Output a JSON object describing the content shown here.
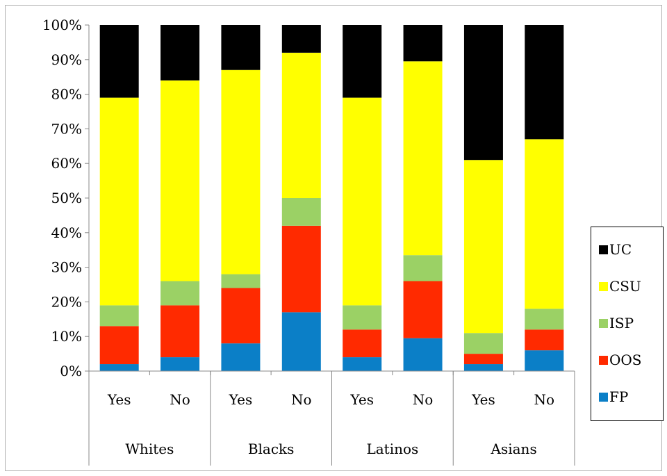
{
  "chart_data": {
    "type": "bar",
    "stacked": true,
    "title": "",
    "xlabel": "",
    "ylabel": "",
    "ylim": [
      0,
      100
    ],
    "yticks": [
      "0%",
      "10%",
      "20%",
      "30%",
      "40%",
      "50%",
      "60%",
      "70%",
      "80%",
      "90%",
      "100%"
    ],
    "groups": [
      "Whites",
      "Blacks",
      "Latinos",
      "Asians"
    ],
    "categories": [
      "Yes",
      "No",
      "Yes",
      "No",
      "Yes",
      "No",
      "Yes",
      "No"
    ],
    "series": [
      {
        "name": "FP",
        "color": "#0b7fc7",
        "values": [
          2,
          4,
          8,
          17,
          4,
          9.5,
          2,
          6
        ]
      },
      {
        "name": "OOS",
        "color": "#ff2a00",
        "values": [
          11,
          15,
          16,
          25,
          8,
          16.5,
          3,
          6
        ]
      },
      {
        "name": "ISP",
        "color": "#9bd165",
        "values": [
          6,
          7,
          4,
          8,
          7,
          7.5,
          6,
          6
        ]
      },
      {
        "name": "CSU",
        "color": "#ffff00",
        "values": [
          60,
          58,
          59,
          42,
          60,
          56,
          50,
          49
        ]
      },
      {
        "name": "UC",
        "color": "#000000",
        "values": [
          21,
          16,
          13,
          8,
          21,
          10.5,
          39,
          33
        ]
      }
    ],
    "legend": {
      "position": "right",
      "order": [
        "UC",
        "CSU",
        "ISP",
        "OOS",
        "FP"
      ]
    },
    "grid": false
  }
}
